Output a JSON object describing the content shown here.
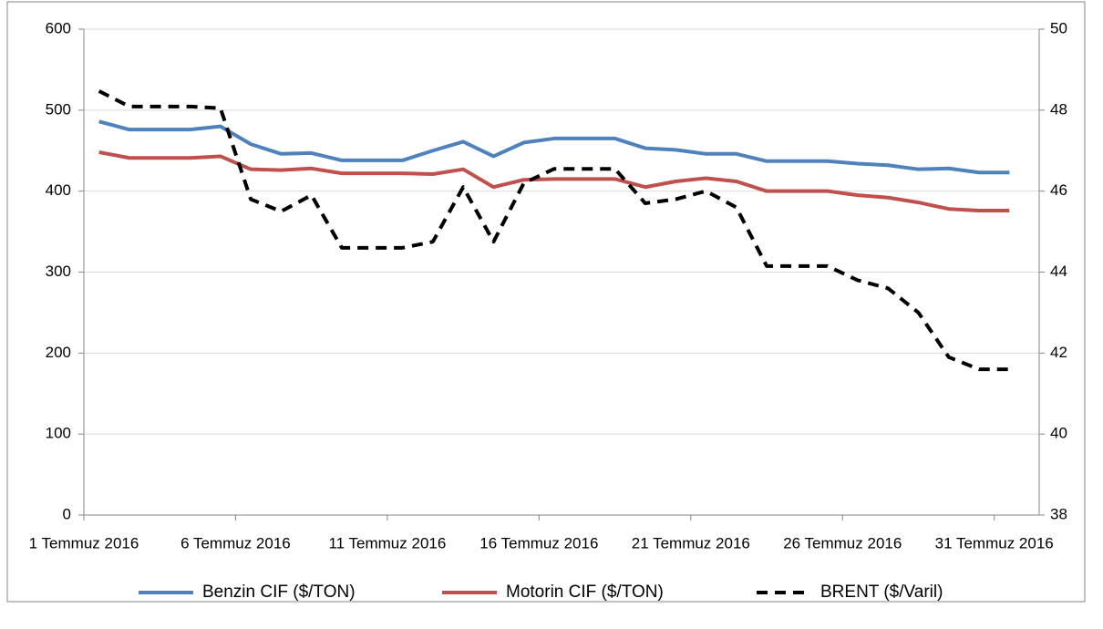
{
  "chart_data": {
    "type": "line",
    "categories": [
      "1 Temmuz 2016",
      null,
      null,
      null,
      null,
      "6 Temmuz 2016",
      null,
      null,
      null,
      null,
      "11 Temmuz 2016",
      null,
      null,
      null,
      null,
      "16 Temmuz 2016",
      null,
      null,
      null,
      null,
      "21 Temmuz 2016",
      null,
      null,
      null,
      null,
      "26 Temmuz 2016",
      null,
      null,
      null,
      null,
      "31 Temmuz 2016"
    ],
    "series": [
      {
        "name": "Benzin CIF ($/TON)",
        "color": "#4f81bd",
        "values": [
          486,
          476,
          476,
          476,
          480,
          458,
          446,
          447,
          438,
          438,
          438,
          450,
          461,
          443,
          460,
          465,
          465,
          465,
          453,
          451,
          446,
          446,
          437,
          437,
          437,
          434,
          432,
          427,
          428,
          423,
          423
        ]
      },
      {
        "name": "Motorin CIF ($/TON)",
        "color": "#c0504d",
        "values": [
          448,
          441,
          441,
          441,
          443,
          427,
          426,
          428,
          422,
          422,
          422,
          421,
          427,
          405,
          414,
          415,
          415,
          415,
          405,
          412,
          416,
          412,
          400,
          400,
          400,
          395,
          392,
          386,
          378,
          376,
          376
        ]
      },
      {
        "name": "BRENT ($/Varil)",
        "color": "#000000",
        "axis": "y2",
        "dashed": true,
        "values": [
          48.47,
          48.09,
          48.09,
          48.09,
          48.05,
          45.8,
          45.5,
          45.9,
          44.6,
          44.6,
          44.6,
          44.75,
          46.1,
          44.75,
          46.2,
          46.55,
          46.55,
          46.55,
          45.7,
          45.8,
          46.0,
          45.6,
          44.15,
          44.15,
          44.15,
          43.8,
          43.6,
          43.0,
          41.9,
          41.6,
          41.6
        ]
      }
    ],
    "ylim": [
      0,
      600
    ],
    "yticks": [
      0,
      100,
      200,
      300,
      400,
      500,
      600
    ],
    "y2lim": [
      38,
      50
    ],
    "y2ticks": [
      38,
      40,
      42,
      44,
      46,
      48,
      50
    ],
    "grid": true,
    "legend": "bottom"
  }
}
